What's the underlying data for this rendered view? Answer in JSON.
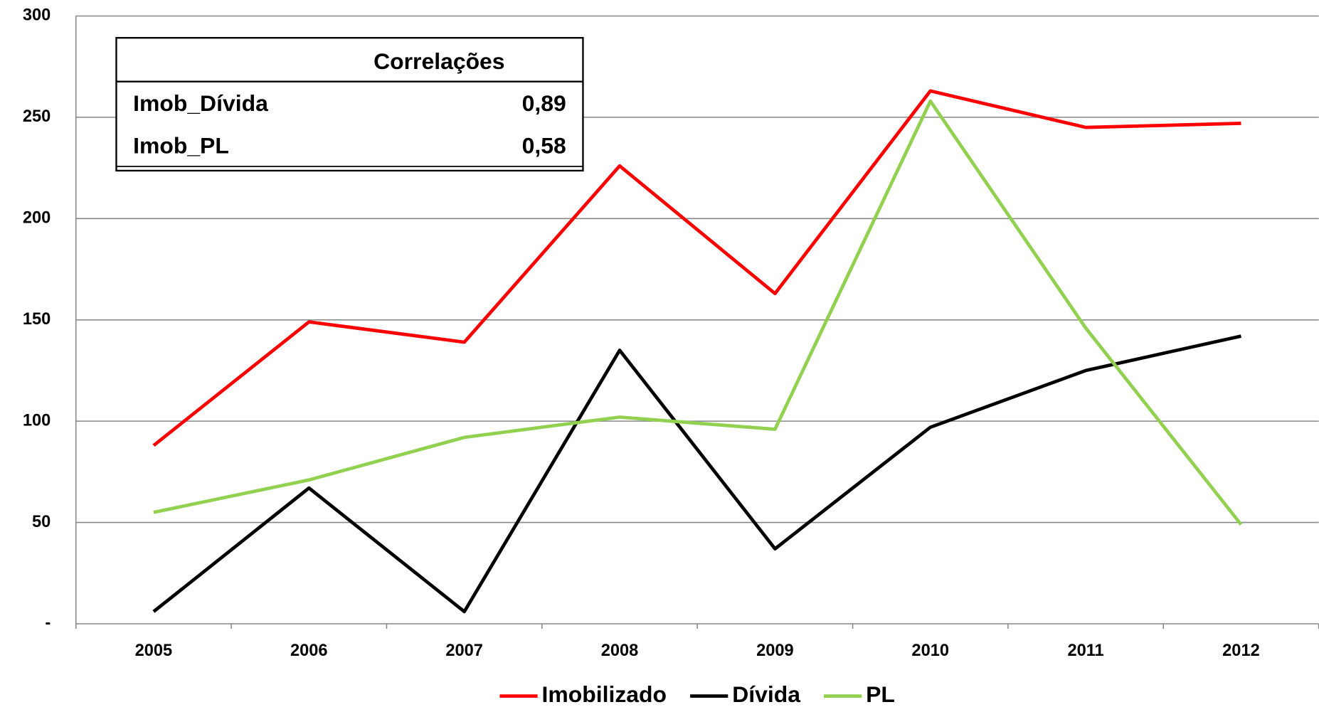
{
  "chart_data": {
    "type": "line",
    "categories": [
      "2005",
      "2006",
      "2007",
      "2008",
      "2009",
      "2010",
      "2011",
      "2012"
    ],
    "series": [
      {
        "name": "Imobilizado",
        "color": "#ff0000",
        "values": [
          88,
          149,
          139,
          226,
          163,
          263,
          245,
          247
        ]
      },
      {
        "name": "Dívida",
        "color": "#000000",
        "values": [
          6,
          67,
          6,
          135,
          37,
          97,
          125,
          142
        ]
      },
      {
        "name": "PL",
        "color": "#92d050",
        "values": [
          55,
          71,
          92,
          102,
          96,
          258,
          146,
          49
        ]
      }
    ],
    "ylim": [
      0,
      300
    ],
    "yticks": [
      {
        "value": 0,
        "label": "-"
      },
      50,
      100,
      150,
      200,
      250,
      300
    ],
    "grid": true,
    "legend": "bottom",
    "correlations": {
      "header": "Correlações",
      "rows": [
        [
          "Imob_Dívida",
          "0,89"
        ],
        [
          "Imob_PL",
          "0,58"
        ]
      ]
    }
  }
}
